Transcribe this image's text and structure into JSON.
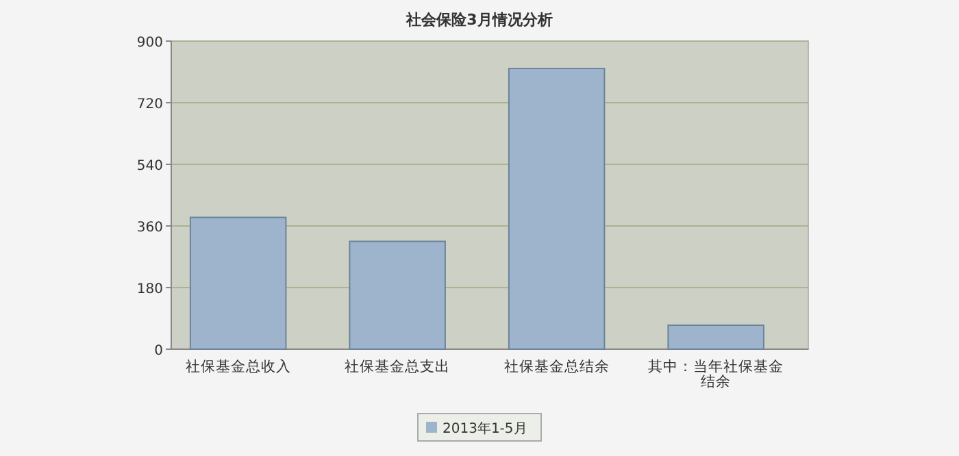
{
  "chart_data": {
    "type": "bar",
    "title": "社会保险3月情况分析",
    "categories": [
      "社保基金总收入",
      "社保基金总支出",
      "社保基金总结余",
      "其中：当年社保基金结余"
    ],
    "series": [
      {
        "name": "2013年1-5月",
        "color": "#9db4cc",
        "values": [
          385,
          315,
          820,
          70
        ]
      }
    ],
    "ylim": [
      0,
      900
    ],
    "yticks": [
      0,
      180,
      360,
      540,
      720,
      900
    ],
    "grid": "y",
    "legend": "bottom"
  }
}
